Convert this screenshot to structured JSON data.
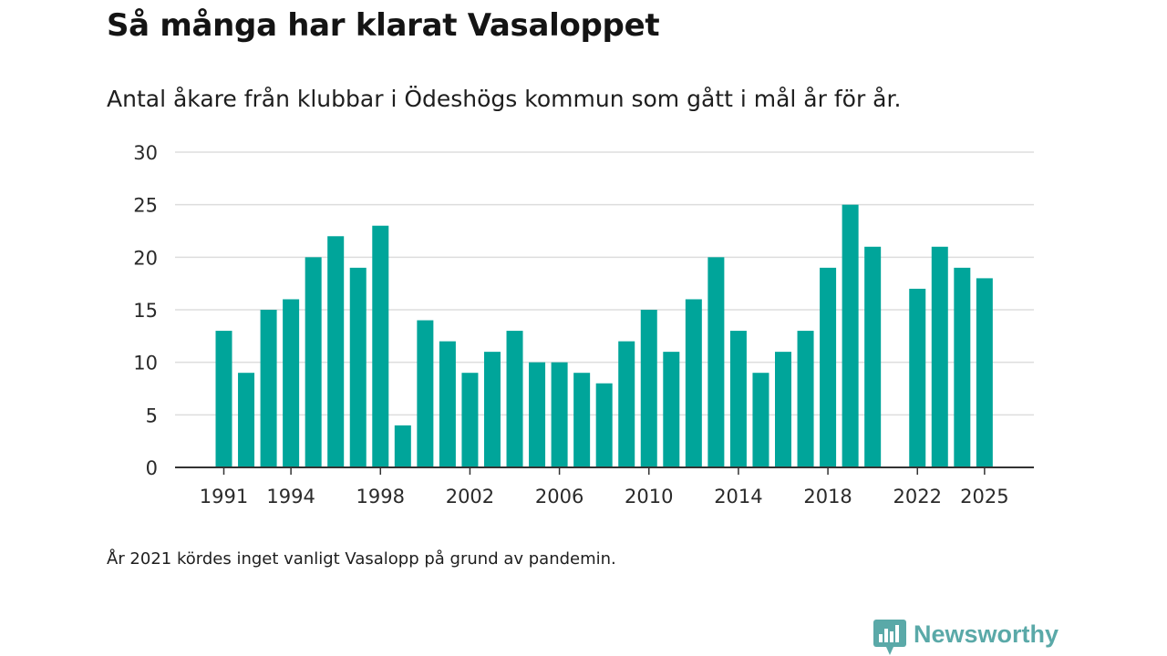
{
  "title": "Så många har klarat Vasaloppet",
  "subtitle": "Antal åkare från klubbar i Ödeshögs kommun som gått i mål år för år.",
  "footnote": "År 2021 kördes inget vanligt Vasalopp på grund av pandemin.",
  "brand": {
    "name": "Newsworthy",
    "color": "#5aa9a8"
  },
  "colors": {
    "bar": "#00a59a",
    "grid": "#dddddd",
    "axis": "#333333"
  },
  "chart_data": {
    "type": "bar",
    "title": "Så många har klarat Vasaloppet",
    "xlabel": "",
    "ylabel": "",
    "ylim": [
      0,
      30
    ],
    "yticks": [
      0,
      5,
      10,
      15,
      20,
      25,
      30
    ],
    "xticks": [
      "1991",
      "1994",
      "1998",
      "2002",
      "2006",
      "2010",
      "2014",
      "2018",
      "2022",
      "2025"
    ],
    "categories": [
      "1991",
      "1992",
      "1993",
      "1994",
      "1995",
      "1996",
      "1997",
      "1998",
      "1999",
      "2000",
      "2001",
      "2002",
      "2003",
      "2004",
      "2005",
      "2006",
      "2007",
      "2008",
      "2009",
      "2010",
      "2011",
      "2012",
      "2013",
      "2014",
      "2015",
      "2016",
      "2017",
      "2018",
      "2019",
      "2020",
      "2021",
      "2022",
      "2023",
      "2024",
      "2025"
    ],
    "values": [
      13,
      9,
      15,
      16,
      20,
      22,
      19,
      23,
      4,
      14,
      12,
      9,
      11,
      13,
      10,
      10,
      9,
      8,
      12,
      15,
      11,
      16,
      20,
      13,
      9,
      11,
      13,
      19,
      25,
      21,
      null,
      17,
      21,
      19,
      18
    ],
    "grid": true,
    "legend": "none"
  }
}
